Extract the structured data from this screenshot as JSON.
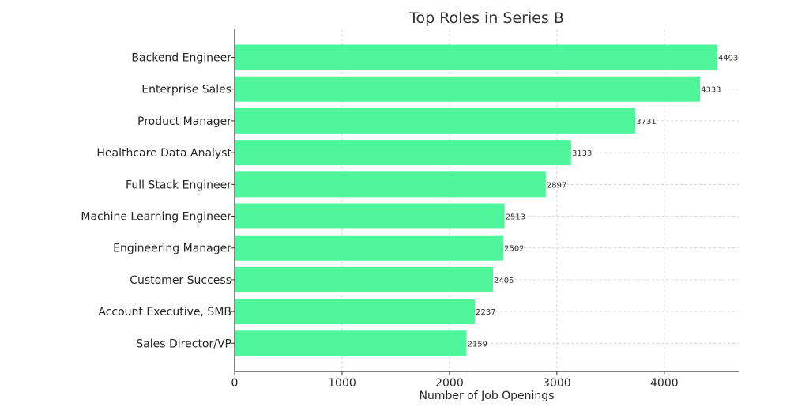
{
  "chart_data": {
    "type": "bar",
    "orientation": "horizontal",
    "title": "Top Roles in Series B",
    "xlabel": "Number of Job Openings",
    "ylabel": "",
    "xlim": [
      0,
      4700
    ],
    "xticks": [
      0,
      1000,
      2000,
      3000,
      4000
    ],
    "grid": true,
    "bar_color": "#4ef59a",
    "categories": [
      "Backend Engineer",
      "Enterprise Sales",
      "Product Manager",
      "Healthcare Data Analyst",
      "Full Stack Engineer",
      "Machine Learning Engineer",
      "Engineering Manager",
      "Customer Success",
      "Account Executive, SMB",
      "Sales Director/VP"
    ],
    "values": [
      4493,
      4333,
      3731,
      3133,
      2897,
      2513,
      2502,
      2405,
      2237,
      2159
    ]
  }
}
